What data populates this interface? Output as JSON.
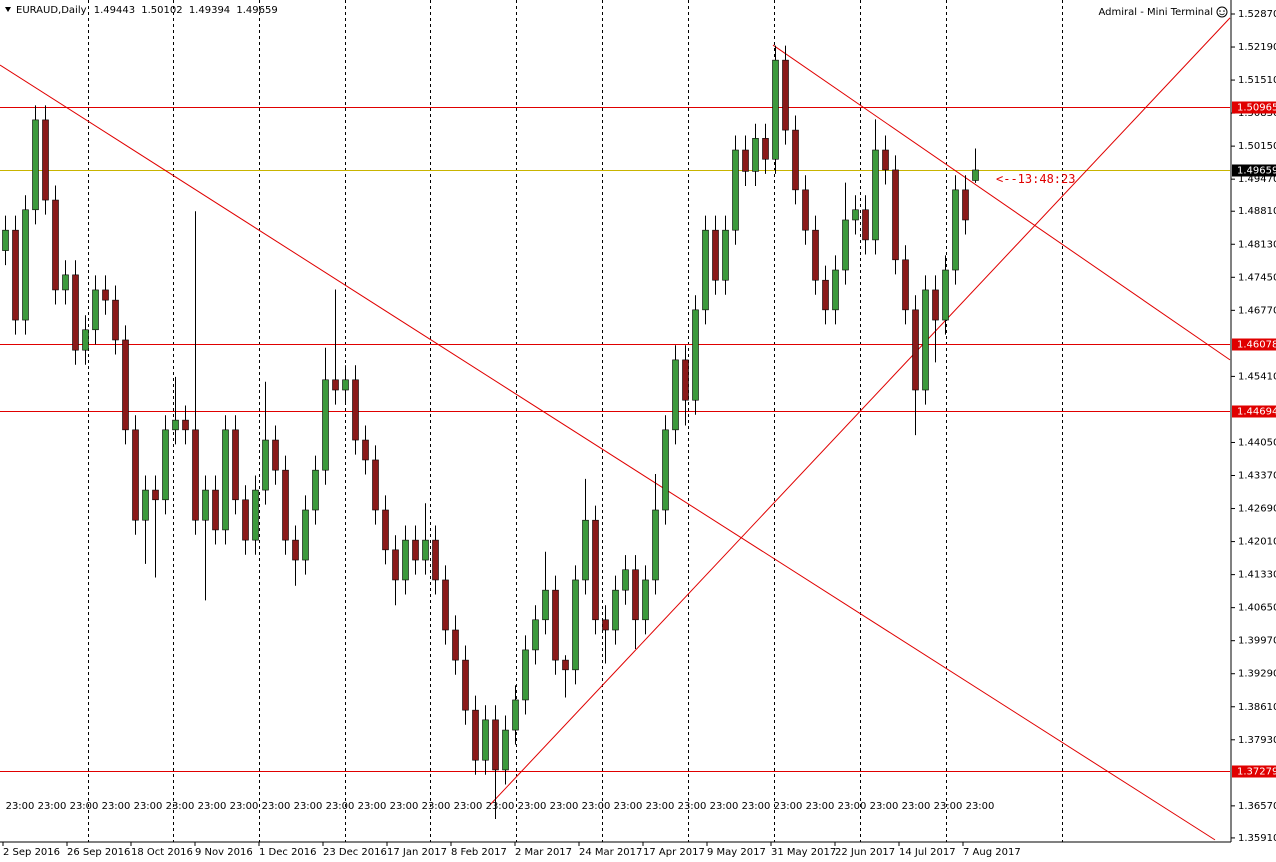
{
  "chart_data": {
    "type": "candlestick",
    "title": "EURAUD,Daily",
    "terminal_label": "Admiral - Mini Terminal",
    "countdown": "<--13:48:23",
    "bull_color": "#3c9a3c",
    "bear_color": "#8b1a1a",
    "xlim": [
      -0.5,
      122.5
    ],
    "ylim": [
      1.35826,
      1.53158
    ],
    "open": [
      1.48,
      1.4842,
      1.4657,
      1.4884,
      1.5069,
      1.4904,
      1.4719,
      1.475,
      1.4595,
      1.4637,
      1.4719,
      1.4698,
      1.4616,
      1.4431,
      1.4245,
      1.4307,
      1.4287,
      1.4431,
      1.4451,
      1.4431,
      1.4245,
      1.4307,
      1.4225,
      1.4431,
      1.4287,
      1.4204,
      1.4307,
      1.441,
      1.4348,
      1.4204,
      1.4163,
      1.4266,
      1.4348,
      1.4534,
      1.4513,
      1.4534,
      1.441,
      1.4369,
      1.4266,
      1.4184,
      1.4122,
      1.4204,
      1.4163,
      1.4204,
      1.4122,
      1.4019,
      1.3957,
      1.3854,
      1.3751,
      1.3834,
      1.3731,
      1.3813,
      1.3875,
      1.3978,
      1.404,
      1.4101,
      1.3957,
      1.3937,
      1.4122,
      1.4245,
      1.404,
      1.4019,
      1.4101,
      1.4143,
      1.404,
      1.4122,
      1.4266,
      1.4431,
      1.4575,
      1.4492,
      1.4678,
      1.4842,
      1.4739,
      1.4842,
      1.5007,
      1.4963,
      1.5031,
      1.4988,
      1.5192,
      1.5048,
      1.4925,
      1.4842,
      1.4739,
      1.4678,
      1.476,
      1.4863,
      1.4884,
      1.4822,
      1.5007,
      1.4966,
      1.4781,
      1.4678,
      1.4513,
      1.4719,
      1.4657,
      1.476,
      1.4925,
      1.49443
    ],
    "high": [
      1.4872,
      1.4872,
      1.4914,
      1.5099,
      1.5099,
      1.4934,
      1.478,
      1.478,
      1.4667,
      1.4749,
      1.4749,
      1.4728,
      1.4646,
      1.4461,
      1.4337,
      1.4337,
      1.4461,
      1.454,
      1.4481,
      1.4881,
      1.4337,
      1.4337,
      1.4461,
      1.4461,
      1.4317,
      1.4337,
      1.453,
      1.444,
      1.4378,
      1.4234,
      1.4296,
      1.4378,
      1.46,
      1.472,
      1.4564,
      1.4564,
      1.444,
      1.4399,
      1.4296,
      1.4214,
      1.4234,
      1.4234,
      1.428,
      1.4234,
      1.4152,
      1.4049,
      1.3987,
      1.3884,
      1.3864,
      1.3864,
      1.3843,
      1.3905,
      1.4008,
      1.407,
      1.418,
      1.4131,
      1.3967,
      1.4152,
      1.433,
      1.4275,
      1.407,
      1.4131,
      1.4173,
      1.4173,
      1.4152,
      1.434,
      1.4461,
      1.4605,
      1.4605,
      1.4708,
      1.4872,
      1.4872,
      1.4872,
      1.5037,
      1.5037,
      1.5061,
      1.5061,
      1.5222,
      1.5222,
      1.5078,
      1.4955,
      1.4872,
      1.4769,
      1.479,
      1.494,
      1.4914,
      1.4914,
      1.507,
      1.5037,
      1.4996,
      1.4811,
      1.4708,
      1.4749,
      1.4749,
      1.479,
      1.4955,
      1.4955,
      1.50102
    ],
    "low": [
      1.477,
      1.4627,
      1.4627,
      1.4854,
      1.4874,
      1.4689,
      1.4689,
      1.4565,
      1.4565,
      1.4607,
      1.4668,
      1.4586,
      1.4401,
      1.4215,
      1.4155,
      1.4127,
      1.4257,
      1.4401,
      1.4401,
      1.4215,
      1.408,
      1.4195,
      1.4195,
      1.4257,
      1.4174,
      1.4174,
      1.4277,
      1.4318,
      1.4174,
      1.411,
      1.4133,
      1.4236,
      1.4318,
      1.4483,
      1.4483,
      1.438,
      1.4339,
      1.4236,
      1.4154,
      1.407,
      1.4092,
      1.4133,
      1.4133,
      1.4092,
      1.3989,
      1.3927,
      1.3824,
      1.3721,
      1.3721,
      1.363,
      1.3701,
      1.3783,
      1.3845,
      1.3948,
      1.401,
      1.3927,
      1.388,
      1.3907,
      1.4092,
      1.401,
      1.395,
      1.3989,
      1.4071,
      1.398,
      1.401,
      1.4092,
      1.4236,
      1.4401,
      1.444,
      1.4462,
      1.4648,
      1.4709,
      1.4709,
      1.4812,
      1.4933,
      1.4933,
      1.4958,
      1.4958,
      1.5018,
      1.4895,
      1.4812,
      1.4709,
      1.4648,
      1.4648,
      1.473,
      1.4833,
      1.4792,
      1.4792,
      1.4936,
      1.4751,
      1.4648,
      1.442,
      1.4483,
      1.457,
      1.4627,
      1.473,
      1.4833,
      1.49394
    ],
    "close": [
      1.4842,
      1.4657,
      1.4884,
      1.5069,
      1.4904,
      1.4719,
      1.475,
      1.4595,
      1.4637,
      1.4719,
      1.4698,
      1.4616,
      1.4431,
      1.4245,
      1.4307,
      1.4287,
      1.4431,
      1.4451,
      1.4431,
      1.4245,
      1.4307,
      1.4225,
      1.4431,
      1.4287,
      1.4204,
      1.4307,
      1.441,
      1.4348,
      1.4204,
      1.4163,
      1.4266,
      1.4348,
      1.4534,
      1.4513,
      1.4534,
      1.441,
      1.4369,
      1.4266,
      1.4184,
      1.4122,
      1.4204,
      1.4163,
      1.4204,
      1.4122,
      1.4019,
      1.3957,
      1.3854,
      1.3751,
      1.3834,
      1.3731,
      1.3813,
      1.3875,
      1.3978,
      1.404,
      1.4101,
      1.3957,
      1.3937,
      1.4122,
      1.4245,
      1.404,
      1.4019,
      1.4101,
      1.4143,
      1.404,
      1.4122,
      1.4266,
      1.4431,
      1.4575,
      1.4492,
      1.4678,
      1.4842,
      1.4739,
      1.4842,
      1.5007,
      1.4963,
      1.5031,
      1.4988,
      1.5192,
      1.5048,
      1.4925,
      1.4842,
      1.4739,
      1.4678,
      1.476,
      1.4863,
      1.4884,
      1.4822,
      1.5007,
      1.4966,
      1.4781,
      1.4678,
      1.4513,
      1.4719,
      1.4657,
      1.476,
      1.4925,
      1.4863,
      1.49659
    ],
    "yticks": [
      {
        "value": 1.5287,
        "label": "1.52870"
      },
      {
        "value": 1.5219,
        "label": "1.52190"
      },
      {
        "value": 1.5151,
        "label": "1.51510"
      },
      {
        "value": 1.5083,
        "label": "1.50830"
      },
      {
        "value": 1.5015,
        "label": "1.50150"
      },
      {
        "value": 1.4947,
        "label": "1.49470"
      },
      {
        "value": 1.4881,
        "label": "1.48810"
      },
      {
        "value": 1.4813,
        "label": "1.48130"
      },
      {
        "value": 1.4745,
        "label": "1.47450"
      },
      {
        "value": 1.4677,
        "label": "1.46770"
      },
      {
        "value": 1.4541,
        "label": "1.45410"
      },
      {
        "value": 1.4405,
        "label": "1.44050"
      },
      {
        "value": 1.4337,
        "label": "1.43370"
      },
      {
        "value": 1.4269,
        "label": "1.42690"
      },
      {
        "value": 1.4201,
        "label": "1.42010"
      },
      {
        "value": 1.4133,
        "label": "1.41330"
      },
      {
        "value": 1.4065,
        "label": "1.40650"
      },
      {
        "value": 1.3997,
        "label": "1.39970"
      },
      {
        "value": 1.3929,
        "label": "1.39290"
      },
      {
        "value": 1.3861,
        "label": "1.38610"
      },
      {
        "value": 1.3793,
        "label": "1.37930"
      },
      {
        "value": 1.3657,
        "label": "1.36570"
      },
      {
        "value": 1.3591,
        "label": "1.35910"
      }
    ],
    "xticks": [
      {
        "value": -0.2,
        "label": "2 Sep 2016"
      },
      {
        "value": 6.2,
        "label": "26 Sep 2016"
      },
      {
        "value": 12.6,
        "label": "18 Oct 2016"
      },
      {
        "value": 19,
        "label": "9 Nov 2016"
      },
      {
        "value": 25.4,
        "label": "1 Dec 2016"
      },
      {
        "value": 31.8,
        "label": "23 Dec 2016"
      },
      {
        "value": 38.2,
        "label": "17 Jan 2017"
      },
      {
        "value": 44.6,
        "label": "8 Feb 2017"
      },
      {
        "value": 51,
        "label": "2 Mar 2017"
      },
      {
        "value": 57.4,
        "label": "24 Mar 2017"
      },
      {
        "value": 63.8,
        "label": "17 Apr 2017"
      },
      {
        "value": 70.2,
        "label": "9 May 2017"
      },
      {
        "value": 76.6,
        "label": "31 May 2017"
      },
      {
        "value": 83,
        "label": "22 Jun 2017"
      },
      {
        "value": 89.4,
        "label": "14 Jul 2017"
      },
      {
        "value": 95.8,
        "label": "7 Aug 2017"
      }
    ],
    "xgrid": [
      8.3,
      16.8,
      25.4,
      34,
      42.5,
      51.1,
      59.7,
      68.3,
      76.9,
      85.5,
      94.1,
      105.7
    ],
    "time_labels": [
      "23:00",
      "23:00",
      "23:00",
      "23:00",
      "23:00",
      "23:00",
      "23:00",
      "23:00",
      "23:00",
      "23:00",
      "23:00",
      "23:00",
      "23:00",
      "23:00",
      "23:00",
      "23:00",
      "23:00",
      "23:00",
      "23:00",
      "23:00",
      "23:00",
      "23:00",
      "23:00",
      "23:00",
      "23:00",
      "23:00",
      "23:00",
      "23:00",
      "23:00",
      "23:00",
      "23:00"
    ],
    "levels": [
      {
        "value": 1.50965,
        "color": "#e00000"
      },
      {
        "value": 1.46078,
        "color": "#e00000"
      },
      {
        "value": 1.44694,
        "color": "#e00000"
      },
      {
        "value": 1.37279,
        "color": "#e00000"
      }
    ],
    "price_line": {
      "value": 1.49659,
      "color": "#c8b400"
    },
    "trendlines": [
      {
        "x": [
          -0.5,
          121
        ],
        "y": [
          1.5182,
          1.3587
        ],
        "color": "#e00000"
      },
      {
        "x": [
          76.8,
          122.5
        ],
        "y": [
          1.5223,
          1.4575
        ],
        "color": "#e00000"
      },
      {
        "x": [
          48.5,
          122.5
        ],
        "y": [
          1.3659,
          1.5279
        ],
        "color": "#e00000"
      }
    ]
  }
}
